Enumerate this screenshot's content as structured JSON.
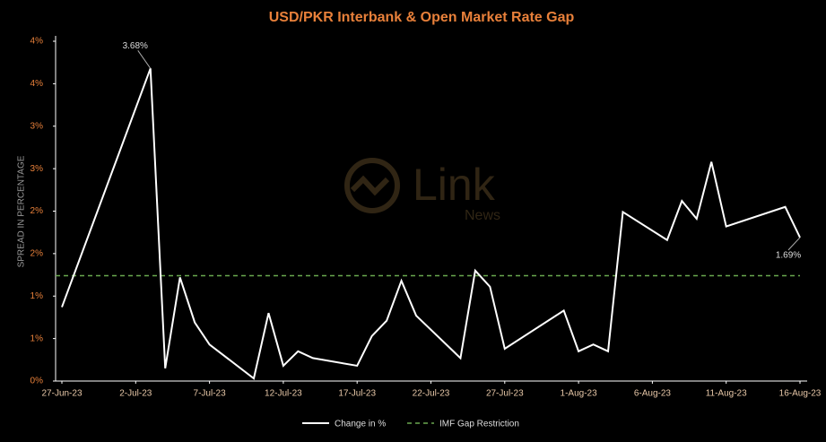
{
  "chart_data": {
    "type": "line",
    "title": "USD/PKR Interbank & Open Market Rate Gap",
    "y_label": "SPREAD IN PERCENTAGE",
    "watermark": {
      "text": "Link",
      "subtext": "News"
    },
    "x": [
      "2023-06-27",
      "2023-07-03",
      "2023-07-04",
      "2023-07-05",
      "2023-07-06",
      "2023-07-07",
      "2023-07-10",
      "2023-07-11",
      "2023-07-12",
      "2023-07-13",
      "2023-07-14",
      "2023-07-17",
      "2023-07-18",
      "2023-07-19",
      "2023-07-20",
      "2023-07-21",
      "2023-07-24",
      "2023-07-25",
      "2023-07-26",
      "2023-07-27",
      "2023-07-31",
      "2023-08-01",
      "2023-08-02",
      "2023-08-03",
      "2023-08-04",
      "2023-08-07",
      "2023-08-08",
      "2023-08-09",
      "2023-08-10",
      "2023-08-11",
      "2023-08-15",
      "2023-08-16"
    ],
    "series": [
      {
        "name": "Change in %",
        "color": "#ffffff",
        "values": [
          0.87,
          3.68,
          0.15,
          1.22,
          0.69,
          0.43,
          0.03,
          0.8,
          0.18,
          0.35,
          0.27,
          0.18,
          0.53,
          0.71,
          1.18,
          0.77,
          0.27,
          1.3,
          1.11,
          0.38,
          0.83,
          0.35,
          0.43,
          0.35,
          1.99,
          1.66,
          2.12,
          1.91,
          2.58,
          1.82,
          2.05,
          1.69
        ],
        "value_labels": [
          null,
          "3.68%",
          null,
          null,
          null,
          null,
          null,
          null,
          null,
          null,
          null,
          null,
          null,
          null,
          null,
          null,
          null,
          null,
          null,
          null,
          null,
          null,
          null,
          null,
          null,
          null,
          null,
          null,
          null,
          null,
          null,
          "1.69%"
        ]
      }
    ],
    "reference_lines": [
      {
        "name": "IMF Gap Restriction",
        "value": 1.24,
        "color": "#6aa84f",
        "style": "dashed"
      }
    ],
    "xlim": [
      "2023-06-27",
      "2023-08-16"
    ],
    "xticks": [
      {
        "value": "2023-06-27",
        "label": "27-Jun-23"
      },
      {
        "value": "2023-07-02",
        "label": "2-Jul-23"
      },
      {
        "value": "2023-07-07",
        "label": "7-Jul-23"
      },
      {
        "value": "2023-07-12",
        "label": "12-Jul-23"
      },
      {
        "value": "2023-07-17",
        "label": "17-Jul-23"
      },
      {
        "value": "2023-07-22",
        "label": "22-Jul-23"
      },
      {
        "value": "2023-07-27",
        "label": "27-Jul-23"
      },
      {
        "value": "2023-08-01",
        "label": "1-Aug-23"
      },
      {
        "value": "2023-08-06",
        "label": "6-Aug-23"
      },
      {
        "value": "2023-08-11",
        "label": "11-Aug-23"
      },
      {
        "value": "2023-08-16",
        "label": "16-Aug-23"
      }
    ],
    "ylim": [
      0,
      4
    ],
    "yticks": [
      {
        "value": 0,
        "label": "0%"
      },
      {
        "value": 0.5,
        "label": "1%"
      },
      {
        "value": 1,
        "label": "1%"
      },
      {
        "value": 1.5,
        "label": "2%"
      },
      {
        "value": 2,
        "label": "2%"
      },
      {
        "value": 2.5,
        "label": "3%"
      },
      {
        "value": 3,
        "label": "3%"
      },
      {
        "value": 3.5,
        "label": "4%"
      },
      {
        "value": 4,
        "label": "4%"
      }
    ]
  }
}
